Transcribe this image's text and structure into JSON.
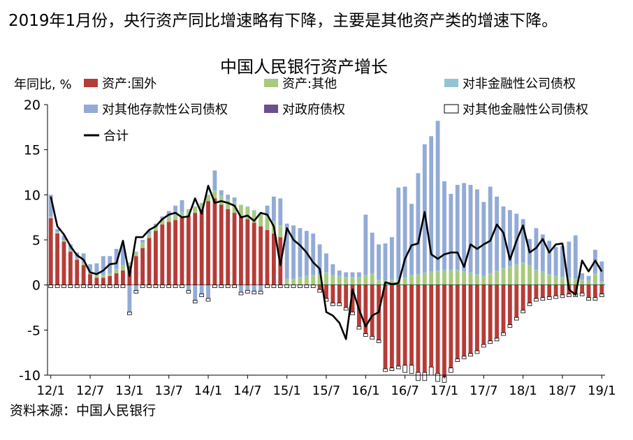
{
  "headline": "2019年1月份，央行资产同比增速略有下降，主要是其他资产类的增速下降。",
  "source_note": "资料来源：中国人民银行",
  "chart_data": {
    "type": "bar",
    "stacked": true,
    "title": "中国人民银行资产增长",
    "ylabel": "年同比, %",
    "xlabel": "",
    "ylim": [
      -10,
      20
    ],
    "y_ticks": [
      -10,
      -5,
      0,
      5,
      10,
      15,
      20
    ],
    "x_tick_labels": [
      "12/1",
      "12/7",
      "13/1",
      "13/7",
      "14/1",
      "14/7",
      "15/1",
      "15/7",
      "16/1",
      "16/7",
      "17/1",
      "17/7",
      "18/1",
      "18/7",
      "19/1"
    ],
    "categories": [
      "12/1",
      "12/2",
      "12/3",
      "12/4",
      "12/5",
      "12/6",
      "12/7",
      "12/8",
      "12/9",
      "12/10",
      "12/11",
      "12/12",
      "13/1",
      "13/2",
      "13/3",
      "13/4",
      "13/5",
      "13/6",
      "13/7",
      "13/8",
      "13/9",
      "13/10",
      "13/11",
      "13/12",
      "14/1",
      "14/2",
      "14/3",
      "14/4",
      "14/5",
      "14/6",
      "14/7",
      "14/8",
      "14/9",
      "14/10",
      "14/11",
      "14/12",
      "15/1",
      "15/2",
      "15/3",
      "15/4",
      "15/5",
      "15/6",
      "15/7",
      "15/8",
      "15/9",
      "15/10",
      "15/11",
      "15/12",
      "16/1",
      "16/2",
      "16/3",
      "16/4",
      "16/5",
      "16/6",
      "16/7",
      "16/8",
      "16/9",
      "16/10",
      "16/11",
      "16/12",
      "17/1",
      "17/2",
      "17/3",
      "17/4",
      "17/5",
      "17/6",
      "17/7",
      "17/8",
      "17/9",
      "17/10",
      "17/11",
      "17/12",
      "18/1",
      "18/2",
      "18/3",
      "18/4",
      "18/5",
      "18/6",
      "18/7",
      "18/8",
      "18/9",
      "18/10",
      "18/11",
      "18/12",
      "19/1"
    ],
    "legend_position": "top",
    "series": [
      {
        "name": "资产:国外",
        "color": "#b63c37",
        "values": [
          7.4,
          5.7,
          4.8,
          3.7,
          2.8,
          2.2,
          1.2,
          0.8,
          0.8,
          1.0,
          1.3,
          1.6,
          2.1,
          3.2,
          4.1,
          5.2,
          6.0,
          6.7,
          7.0,
          7.2,
          7.5,
          7.7,
          8.0,
          8.4,
          9.3,
          9.6,
          8.9,
          8.4,
          8.0,
          7.6,
          7.3,
          6.9,
          6.5,
          6.1,
          5.7,
          5.3,
          0,
          0,
          0,
          0,
          0,
          -0.5,
          -1.5,
          -2.0,
          -2.0,
          -2.5,
          -3.0,
          -4.6,
          -5.4,
          -5.7,
          -6.1,
          -9.3,
          -9.2,
          -9.0,
          -8.9,
          -8.9,
          -9.7,
          -9.7,
          -9.1,
          -9.8,
          -10.2,
          -9.2,
          -8.2,
          -7.9,
          -7.6,
          -7.3,
          -6.6,
          -6.2,
          -5.9,
          -5.3,
          -4.4,
          -3.6,
          -2.8,
          -2.0,
          -1.5,
          -1.4,
          -1.3,
          -1.2,
          -1.1,
          -1.0,
          -1.0,
          -0.9,
          -1.4,
          -1.4,
          -1.0
        ]
      },
      {
        "name": "资产:其他",
        "color": "#a9c97e",
        "values": [
          0.1,
          0.1,
          0.1,
          0.1,
          0.1,
          0.2,
          0.2,
          0.3,
          0.2,
          0.2,
          0.4,
          0.5,
          0.3,
          0.4,
          0.5,
          0.4,
          0.4,
          0.5,
          0.5,
          0.5,
          0.5,
          0.6,
          0.6,
          0.6,
          0.6,
          0.8,
          0.9,
          1.0,
          1.1,
          1.2,
          1.3,
          1.3,
          1.3,
          1.4,
          1.3,
          1.2,
          0.6,
          0.6,
          0.8,
          0.9,
          1.0,
          1.1,
          1.3,
          1.0,
          0.9,
          0.8,
          0.8,
          0.8,
          1.0,
          1.2,
          0.5,
          0.4,
          0.5,
          0.6,
          0.7,
          1.0,
          1.1,
          1.3,
          1.4,
          1.5,
          1.6,
          1.6,
          1.6,
          1.4,
          1.3,
          1.1,
          0.9,
          1.2,
          1.5,
          1.8,
          2.0,
          2.2,
          2.4,
          2.1,
          1.6,
          1.4,
          1.1,
          0.9,
          0.8,
          0.7,
          0.6,
          0.5,
          0.4,
          1.2,
          0.3
        ]
      },
      {
        "name": "对非金融性公司债权",
        "color": "#92c5d3",
        "values": [
          0.1,
          0.1,
          0.1,
          0.1,
          0.1,
          0.1,
          0.1,
          0.1,
          0.1,
          0.1,
          0.1,
          0.1,
          0.1,
          0.1,
          0.1,
          0.1,
          0.1,
          0.1,
          0.1,
          0.1,
          0.1,
          0.1,
          0.1,
          0.1,
          0.1,
          0.1,
          0.1,
          0.1,
          0.1,
          0.1,
          0.1,
          0.1,
          0.1,
          0.1,
          0.1,
          0.1,
          0.1,
          0.1,
          0.1,
          0.1,
          0.1,
          0.1,
          0.1,
          0.1,
          0.1,
          0.1,
          0.1,
          0.1,
          0.1,
          0.1,
          0.1,
          0.1,
          0.1,
          0.1,
          0.1,
          0.1,
          0.1,
          0.1,
          0.1,
          0.1,
          0.1,
          0.1,
          0.1,
          0.1,
          0.1,
          0.1,
          0.1,
          0.1,
          0.1,
          0.1,
          0.1,
          0.1,
          0.1,
          0.1,
          0.1,
          0.1,
          0.1,
          0.1,
          0.1,
          0.1,
          0.1,
          0.1,
          0.1,
          0.1,
          0.1
        ]
      },
      {
        "name": "对其他存款性公司债权",
        "color": "#92abd6",
        "values": [
          2.4,
          0.3,
          0.5,
          0.6,
          0.6,
          1.0,
          0.8,
          1.2,
          2.1,
          1.9,
          2.2,
          2.2,
          -3.0,
          -0.6,
          0.3,
          0.3,
          0.3,
          0.3,
          0.6,
          1.0,
          1.3,
          -0.6,
          -1.7,
          -1.0,
          -1.5,
          2.2,
          0.6,
          0.5,
          0.5,
          -0.8,
          -0.6,
          -0.7,
          -0.7,
          1.2,
          2.7,
          3.0,
          6.1,
          5.9,
          5.4,
          5.0,
          4.6,
          3.3,
          2.1,
          1.2,
          0.6,
          0.5,
          0.5,
          0.5,
          6.7,
          4.5,
          3.9,
          4.1,
          4.7,
          10.1,
          10.1,
          7.9,
          11.2,
          14.2,
          15.0,
          16.6,
          9.8,
          8.4,
          9.4,
          9.8,
          9.7,
          9.4,
          8.2,
          9.6,
          8.2,
          6.8,
          6.2,
          5.6,
          4.8,
          2.9,
          4.6,
          4.1,
          3.7,
          3.2,
          3.4,
          4.0,
          4.8,
          0.7,
          0.5,
          2.6,
          2.2
        ]
      },
      {
        "name": "对政府债权",
        "color": "#6b4f8e",
        "values": [
          0,
          0,
          0,
          0,
          0,
          0,
          0,
          0,
          0,
          0,
          0,
          0,
          0,
          0,
          0,
          0,
          0,
          0,
          0,
          0,
          0,
          0,
          0,
          0,
          0,
          0,
          0,
          0,
          0,
          0,
          0,
          0,
          0,
          0,
          0,
          0,
          0,
          0,
          0,
          0,
          0,
          0,
          0,
          0,
          0,
          0,
          0,
          0,
          0,
          0,
          0,
          0,
          0,
          0,
          0,
          0,
          0,
          0,
          0,
          0,
          0,
          0,
          0,
          0,
          0,
          0,
          0,
          0,
          0,
          0,
          0,
          0,
          0,
          0,
          0,
          0,
          0,
          0,
          0,
          0,
          0,
          0,
          0,
          0,
          0
        ]
      },
      {
        "name": "对其他金融性公司债权",
        "color": "#ffffff",
        "stroke": "#000000",
        "values": [
          -0.3,
          -0.3,
          -0.3,
          -0.3,
          -0.3,
          -0.3,
          -0.3,
          -0.3,
          -0.3,
          -0.3,
          -0.3,
          -0.3,
          -0.3,
          -0.3,
          -0.3,
          -0.3,
          -0.3,
          -0.3,
          -0.3,
          -0.3,
          -0.3,
          -0.3,
          -0.3,
          -0.3,
          -0.3,
          -0.3,
          -0.3,
          -0.3,
          -0.3,
          -0.3,
          -0.3,
          -0.3,
          -0.3,
          -0.3,
          -0.3,
          -0.3,
          -0.3,
          -0.3,
          -0.3,
          -0.3,
          -0.3,
          -0.3,
          -0.3,
          -0.3,
          -0.3,
          -0.3,
          -0.3,
          -0.3,
          -0.3,
          -0.3,
          -0.3,
          -0.3,
          -0.3,
          -0.3,
          -0.8,
          -0.9,
          -0.9,
          -0.9,
          -0.9,
          -0.9,
          -0.6,
          -0.5,
          -0.3,
          -0.3,
          -0.3,
          -0.3,
          -0.3,
          -0.3,
          -0.3,
          -0.3,
          -0.3,
          -0.3,
          -0.3,
          -0.3,
          -0.3,
          -0.3,
          -0.3,
          -0.3,
          -0.3,
          -0.3,
          -0.3,
          -0.3,
          -0.3,
          -0.3,
          -0.3
        ]
      }
    ],
    "line_series": {
      "name": "合计",
      "color": "#000000",
      "values": [
        9.8,
        6.5,
        5.6,
        4.3,
        3.3,
        2.8,
        1.4,
        1.2,
        1.6,
        2.3,
        2.4,
        4.9,
        1.0,
        5.3,
        5.3,
        6.1,
        6.5,
        7.3,
        7.8,
        8.0,
        7.5,
        7.6,
        9.6,
        7.9,
        11.0,
        9.1,
        9.3,
        9.1,
        8.8,
        7.5,
        7.7,
        7.1,
        8.0,
        7.8,
        6.5,
        2.2,
        6.3,
        5.0,
        4.4,
        3.6,
        2.5,
        1.8,
        -3.0,
        -3.4,
        -4.2,
        -6.0,
        -0.5,
        -2.7,
        -4.6,
        -3.4,
        -3.0,
        0.3,
        0.1,
        0.2,
        2.9,
        4.4,
        4.6,
        8.1,
        3.4,
        2.9,
        3.4,
        3.6,
        3.6,
        2.0,
        4.5,
        4.0,
        4.5,
        4.9,
        6.7,
        5.8,
        2.8,
        4.9,
        6.6,
        3.6,
        4.1,
        5.1,
        3.6,
        4.5,
        4.6,
        -0.5,
        -1.1,
        2.7,
        1.5,
        2.7,
        1.5
      ]
    }
  }
}
